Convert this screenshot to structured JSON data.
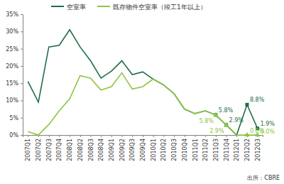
{
  "chart_data": {
    "type": "line",
    "categories": [
      "2007Q1",
      "2007Q2",
      "2007Q3",
      "2007Q4",
      "2008Q1",
      "2008Q2",
      "2008Q3",
      "2008Q4",
      "2009Q1",
      "2009Q2",
      "2009Q3",
      "2009Q4",
      "2010Q1",
      "2010Q2",
      "2010Q3",
      "2010Q4",
      "2011Q1",
      "2011Q2",
      "2011Q3",
      "2011Q4",
      "2012Q1",
      "2012Q2",
      "2012Q3"
    ],
    "series": [
      {
        "name": "空室率",
        "color": "#1f6e46",
        "marker": "square",
        "values": [
          15.5,
          9.5,
          25.5,
          26,
          30.5,
          25.5,
          21.5,
          16.5,
          18.5,
          21.5,
          17.5,
          18.3,
          16.2,
          14.5,
          12,
          7.5,
          6.2,
          7,
          5.8,
          2.9,
          0,
          8.8,
          1.9
        ],
        "value_labels": [
          null,
          null,
          null,
          null,
          null,
          null,
          null,
          null,
          null,
          null,
          null,
          null,
          null,
          null,
          null,
          null,
          null,
          null,
          "5.8%",
          "2.9%",
          null,
          "8.8%",
          "1.9%"
        ]
      },
      {
        "name": "既存物件空室率（竣工1年以上）",
        "color": "#8dc63f",
        "marker": "triangle",
        "values": [
          1,
          0,
          3,
          7,
          10.5,
          17.2,
          16.5,
          13,
          14,
          18,
          13.3,
          14,
          16.2,
          14.5,
          12,
          7.5,
          6.2,
          7,
          5.8,
          2.9,
          0,
          0.0,
          0.0
        ],
        "value_labels": [
          null,
          null,
          null,
          null,
          null,
          null,
          null,
          null,
          null,
          null,
          null,
          null,
          null,
          null,
          null,
          null,
          null,
          null,
          "5.8%",
          "2.9%",
          null,
          "0.0%",
          "0.0%"
        ]
      }
    ],
    "ylim": [
      0,
      35
    ],
    "yticks": [
      {
        "value": 0,
        "label": "0%"
      },
      {
        "value": 5,
        "label": "5%"
      },
      {
        "value": 10,
        "label": "10%"
      },
      {
        "value": 15,
        "label": "15%"
      },
      {
        "value": 20,
        "label": "20%"
      },
      {
        "value": 25,
        "label": "25%"
      },
      {
        "value": 30,
        "label": "30%"
      },
      {
        "value": 35,
        "label": "35%"
      }
    ],
    "grid": false,
    "legend": "top",
    "data_labels": true,
    "source": "出所：CBRE"
  }
}
